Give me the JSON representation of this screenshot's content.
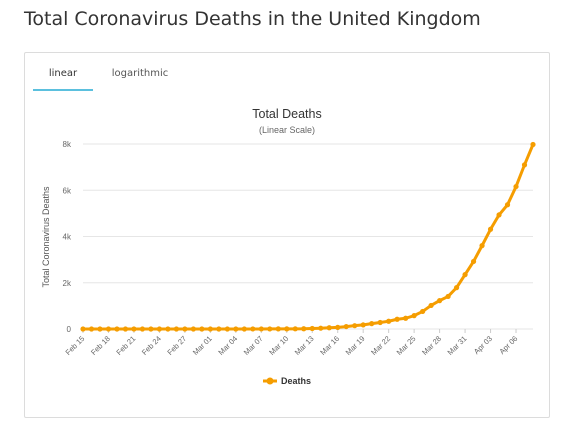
{
  "page": {
    "title": "Total Coronavirus Deaths in the United Kingdom"
  },
  "tabs": [
    {
      "label": "linear",
      "active": true
    },
    {
      "label": "logarithmic",
      "active": false
    }
  ],
  "colors": {
    "series": "#f59d00",
    "tab_underline": "#5bc0de",
    "grid": "#e6e6e6"
  },
  "chart_data": {
    "type": "line",
    "title": "Total Deaths",
    "subtitle": "(Linear Scale)",
    "ylabel": "Total Coronavirus Deaths",
    "xlabel": "",
    "ylim": [
      0,
      8000
    ],
    "yticks": [
      0,
      2000,
      4000,
      6000,
      8000
    ],
    "ytick_labels": [
      "0",
      "2k",
      "4k",
      "6k",
      "8k"
    ],
    "grid": true,
    "legend": "bottom-center",
    "categories": [
      "Feb 15",
      "Feb 16",
      "Feb 17",
      "Feb 18",
      "Feb 19",
      "Feb 20",
      "Feb 21",
      "Feb 22",
      "Feb 23",
      "Feb 24",
      "Feb 25",
      "Feb 26",
      "Feb 27",
      "Feb 28",
      "Feb 29",
      "Mar 01",
      "Mar 02",
      "Mar 03",
      "Mar 04",
      "Mar 05",
      "Mar 06",
      "Mar 07",
      "Mar 08",
      "Mar 09",
      "Mar 10",
      "Mar 11",
      "Mar 12",
      "Mar 13",
      "Mar 14",
      "Mar 15",
      "Mar 16",
      "Mar 17",
      "Mar 18",
      "Mar 19",
      "Mar 20",
      "Mar 21",
      "Mar 22",
      "Mar 23",
      "Mar 24",
      "Mar 25",
      "Mar 26",
      "Mar 27",
      "Mar 28",
      "Mar 29",
      "Mar 30",
      "Mar 31",
      "Apr 01",
      "Apr 02",
      "Apr 03",
      "Apr 04",
      "Apr 05",
      "Apr 06",
      "Apr 07",
      "Apr 08"
    ],
    "tick_labels": [
      "Feb 15",
      "Feb 18",
      "Feb 21",
      "Feb 24",
      "Feb 27",
      "Mar 01",
      "Mar 04",
      "Mar 07",
      "Mar 10",
      "Mar 13",
      "Mar 16",
      "Mar 19",
      "Mar 22",
      "Mar 25",
      "Mar 28",
      "Mar 31",
      "Apr 03",
      "Apr 06"
    ],
    "series": [
      {
        "name": "Deaths",
        "values": [
          0,
          0,
          0,
          0,
          0,
          0,
          0,
          0,
          0,
          0,
          0,
          0,
          0,
          0,
          0,
          0,
          0,
          0,
          0,
          1,
          2,
          2,
          3,
          5,
          6,
          8,
          10,
          21,
          35,
          55,
          71,
          104,
          144,
          177,
          233,
          281,
          336,
          422,
          465,
          578,
          759,
          1019,
          1228,
          1408,
          1789,
          2352,
          2921,
          3605,
          4313,
          4934,
          5373,
          6159,
          7097,
          7978
        ]
      }
    ]
  }
}
